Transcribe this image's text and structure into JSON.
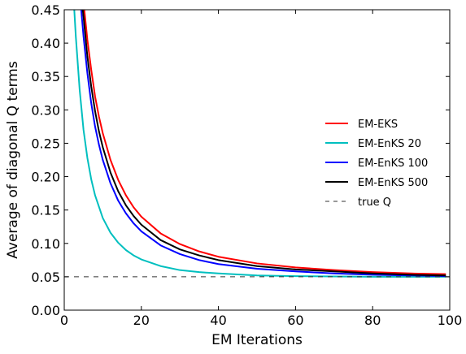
{
  "chart_data": {
    "type": "line",
    "title": "",
    "xlabel": "EM Iterations",
    "ylabel": "Average of diagonal Q terms",
    "xlim": [
      0,
      100
    ],
    "ylim": [
      0.0,
      0.45
    ],
    "xticks": [
      0,
      20,
      40,
      60,
      80,
      100
    ],
    "xtick_labels": [
      "0",
      "20",
      "40",
      "60",
      "80",
      "100"
    ],
    "yticks": [
      0.0,
      0.05,
      0.1,
      0.15,
      0.2,
      0.25,
      0.3,
      0.35,
      0.4,
      0.45
    ],
    "ytick_labels": [
      "0.00",
      "0.05",
      "0.10",
      "0.15",
      "0.20",
      "0.25",
      "0.30",
      "0.35",
      "0.40",
      "0.45"
    ],
    "grid": false,
    "legend_position": "right",
    "series": [
      {
        "name": "EM-EKS",
        "color": "#ff0000",
        "style": "solid",
        "x": [
          5.2,
          6,
          7,
          8,
          9,
          10,
          12,
          14,
          16,
          18,
          20,
          25,
          30,
          35,
          40,
          50,
          60,
          70,
          80,
          90,
          99
        ],
        "y": [
          0.45,
          0.405,
          0.36,
          0.32,
          0.29,
          0.265,
          0.225,
          0.195,
          0.172,
          0.154,
          0.14,
          0.115,
          0.099,
          0.088,
          0.08,
          0.07,
          0.064,
          0.06,
          0.057,
          0.055,
          0.054
        ]
      },
      {
        "name": "EM-EnKS 20",
        "color": "#00bfbf",
        "style": "solid",
        "x": [
          2.6,
          3,
          4,
          5,
          6,
          7,
          8,
          10,
          12,
          14,
          16,
          18,
          20,
          25,
          30,
          35,
          40,
          50,
          60,
          70,
          80,
          90,
          99
        ],
        "y": [
          0.45,
          0.41,
          0.33,
          0.27,
          0.228,
          0.196,
          0.172,
          0.138,
          0.116,
          0.101,
          0.09,
          0.082,
          0.076,
          0.066,
          0.06,
          0.057,
          0.055,
          0.052,
          0.051,
          0.0505,
          0.05,
          0.05,
          0.05
        ]
      },
      {
        "name": "EM-EnKS 100",
        "color": "#0000ff",
        "style": "solid",
        "x": [
          4.4,
          5,
          6,
          7,
          8,
          9,
          10,
          12,
          14,
          16,
          18,
          20,
          25,
          30,
          35,
          40,
          50,
          60,
          70,
          80,
          90,
          99
        ],
        "y": [
          0.45,
          0.41,
          0.355,
          0.31,
          0.275,
          0.248,
          0.225,
          0.19,
          0.164,
          0.145,
          0.13,
          0.118,
          0.097,
          0.084,
          0.075,
          0.069,
          0.062,
          0.058,
          0.055,
          0.053,
          0.052,
          0.051
        ]
      },
      {
        "name": "EM-EnKS 500",
        "color": "#000000",
        "style": "solid",
        "x": [
          4.8,
          5,
          6,
          7,
          8,
          9,
          10,
          12,
          14,
          16,
          18,
          20,
          25,
          30,
          35,
          40,
          50,
          60,
          70,
          80,
          90,
          99
        ],
        "y": [
          0.45,
          0.44,
          0.38,
          0.335,
          0.298,
          0.268,
          0.244,
          0.206,
          0.178,
          0.157,
          0.141,
          0.128,
          0.105,
          0.091,
          0.082,
          0.075,
          0.066,
          0.061,
          0.058,
          0.055,
          0.053,
          0.052
        ]
      },
      {
        "name": "true Q",
        "color": "#333333",
        "style": "dashed",
        "x": [
          0,
          100
        ],
        "y": [
          0.05,
          0.05
        ]
      }
    ]
  }
}
